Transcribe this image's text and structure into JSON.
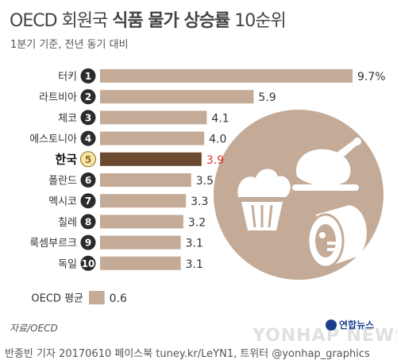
{
  "title_light": "OECD 회원국 ",
  "title_bold": "식품 물가 상승률",
  "title_tail": " 10순위",
  "subtitle": "1분기 기준, 전년 동기 대비",
  "source": "자료/OECD",
  "logo_text": "연합뉴스",
  "watermark": "YONHAP NEWS",
  "credit": "반종빈 기자 20170610 페이스북 tuney.kr/LeYN1, 트위터 @yonhap_graphics",
  "colors": {
    "bar": "#c3ab98",
    "highlight_bar": "#6b4a2f",
    "highlight_text": "#e0312a",
    "rank_circle": "#2b2b2b",
    "highlight_circle": "#f7e7a4",
    "illustration_bg": "#c3ab98"
  },
  "illustration_icons": [
    "cupcake-icon",
    "roast-chicken-icon",
    "ham-icon"
  ],
  "chart_data": {
    "type": "bar",
    "orientation": "horizontal",
    "categories": [
      "터키",
      "라트비아",
      "체코",
      "에스토니아",
      "한국",
      "폴란드",
      "멕시코",
      "칠레",
      "룩셈부르크",
      "독일",
      "OECD 평균"
    ],
    "ranks": [
      "1",
      "2",
      "3",
      "4",
      "5",
      "6",
      "7",
      "8",
      "9",
      "10",
      ""
    ],
    "values": [
      9.7,
      5.9,
      4.1,
      4.0,
      3.9,
      3.5,
      3.3,
      3.2,
      3.1,
      3.1,
      0.6
    ],
    "value_labels": [
      "9.7%",
      "5.9",
      "4.1",
      "4.0",
      "3.9",
      "3.5",
      "3.3",
      "3.2",
      "3.1",
      "3.1",
      "0.6"
    ],
    "highlight": "한국",
    "unit": "%",
    "xlim": [
      0,
      9.7
    ]
  }
}
